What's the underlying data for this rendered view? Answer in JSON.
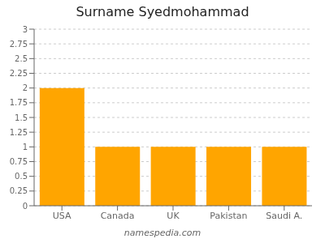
{
  "chart_data": {
    "type": "bar",
    "title": "Surname Syedmohammad",
    "categories": [
      "USA",
      "Canada",
      "UK",
      "Pakistan",
      "Saudi A."
    ],
    "values": [
      2,
      1,
      1,
      1,
      1
    ],
    "color": "#FFA500",
    "ylim": [
      0,
      3
    ],
    "yticks": [
      0,
      0.25,
      0.5,
      0.75,
      1,
      1.25,
      1.5,
      1.75,
      2,
      2.25,
      2.5,
      2.75,
      3
    ],
    "grid": true,
    "annotations": [
      "namespedia.com"
    ]
  }
}
